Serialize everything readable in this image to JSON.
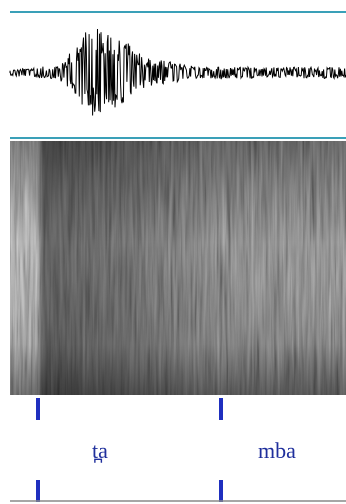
{
  "segments": [
    {
      "label": "t̪a"
    },
    {
      "label": "mba"
    }
  ]
}
